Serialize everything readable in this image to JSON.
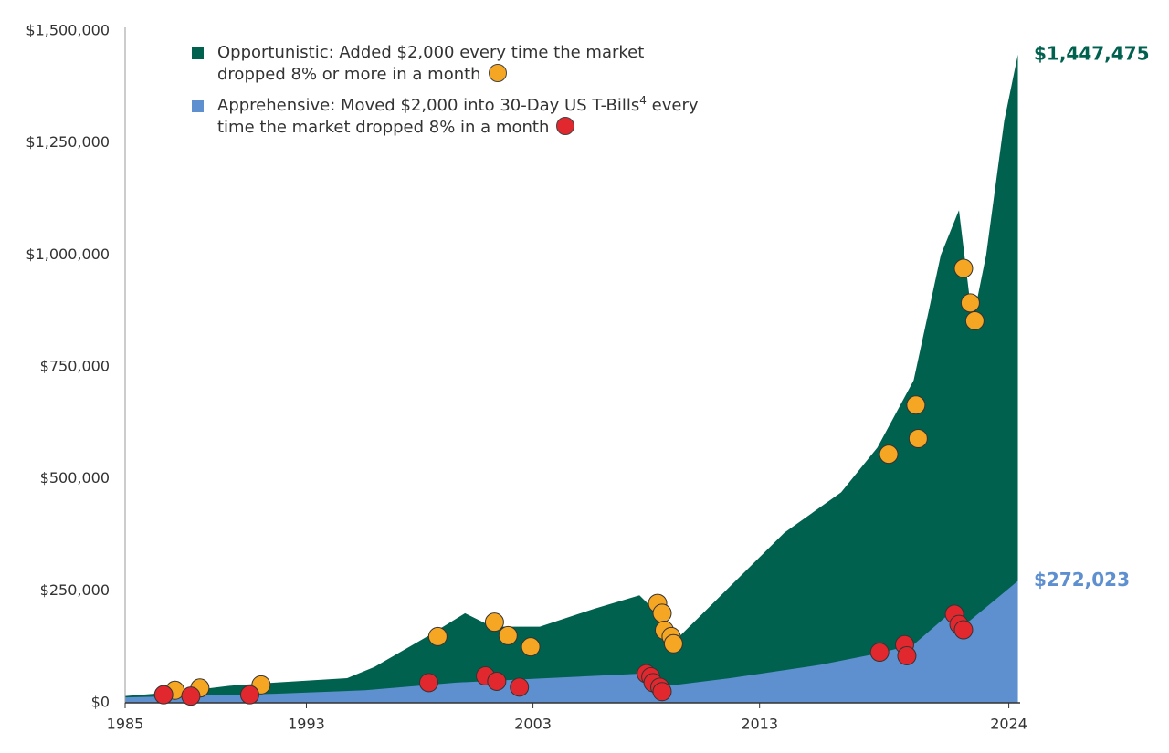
{
  "chart_data": {
    "type": "area",
    "xlim": [
      1985,
      2024.5
    ],
    "xticks": [
      1985,
      1993,
      2003,
      2013,
      2024
    ],
    "ylim": [
      0,
      1500000
    ],
    "yticks": [
      {
        "value": 0,
        "label": "$0"
      },
      {
        "value": 250000,
        "label": "$250,000"
      },
      {
        "value": 500000,
        "label": "$500,000"
      },
      {
        "value": 750000,
        "label": "$750,000"
      },
      {
        "value": 1000000,
        "label": "$1,000,000"
      },
      {
        "value": 1250000,
        "label": "$1,250,000"
      },
      {
        "value": 1500000,
        "label": "$1,500,000"
      }
    ],
    "series": [
      {
        "name": "Opportunistic: Added $2,000 every time the market dropped 8% or more in a month",
        "color": "#00614f",
        "end_label": "$1,447,475",
        "x": [
          1985,
          1987.5,
          1989.6,
          1991.6,
          1994.8,
          1996,
          1998.4,
          2000,
          2001.2,
          2003.3,
          2005.7,
          2007.7,
          2009.5,
          2011.7,
          2014.1,
          2016.6,
          2018.2,
          2019.8,
          2021,
          2021.8,
          2022.4,
          2023,
          2023.8,
          2024.4
        ],
        "values": [
          15000,
          25000,
          38000,
          45000,
          55000,
          80000,
          150000,
          200000,
          170000,
          170000,
          210000,
          240000,
          150000,
          260000,
          380000,
          470000,
          570000,
          720000,
          1000000,
          1100000,
          850000,
          1000000,
          1300000,
          1447475
        ],
        "events": {
          "color": "#f5a623",
          "x": [
            1987.2,
            1988.3,
            1991,
            1998.8,
            2001.3,
            2001.9,
            2002.9,
            2008.5,
            2008.7,
            2008.8,
            2009.1,
            2009.2,
            2018.7,
            2019.9,
            2020,
            2022,
            2022.3,
            2022.5
          ],
          "y": [
            28000,
            33000,
            40000,
            148000,
            180000,
            150000,
            125000,
            222000,
            200000,
            162000,
            148000,
            132000,
            555000,
            665000,
            590000,
            970000,
            893000,
            853000
          ]
        }
      },
      {
        "name": "Apprehensive: Moved $2,000 into 30-Day US T-Bills",
        "name_note": "4",
        "name_end": "every time the market dropped 8% in a month",
        "color": "#5e8fcf",
        "end_label": "$272,023",
        "x": [
          1985,
          1991.6,
          1995.6,
          1999.6,
          2003.6,
          2007.7,
          2008.5,
          2011.7,
          2015.7,
          2018.2,
          2019.8,
          2021.4,
          2022.2,
          2023.4,
          2024.4
        ],
        "values": [
          12000,
          20000,
          28000,
          45000,
          55000,
          65000,
          35000,
          55000,
          85000,
          110000,
          130000,
          200000,
          180000,
          230000,
          272023
        ],
        "events": {
          "color": "#e0282e",
          "x": [
            1986.7,
            1987.9,
            1990.5,
            1998.4,
            2000.9,
            2001.4,
            2002.4,
            2008,
            2008.2,
            2008.3,
            2008.6,
            2008.7,
            2018.3,
            2019.4,
            2019.5,
            2021.6,
            2021.8,
            2022
          ],
          "y": [
            18000,
            15000,
            18000,
            45000,
            60000,
            48000,
            35000,
            65000,
            58000,
            45000,
            35000,
            25000,
            113000,
            130000,
            105000,
            198000,
            175000,
            163000
          ]
        }
      }
    ]
  }
}
